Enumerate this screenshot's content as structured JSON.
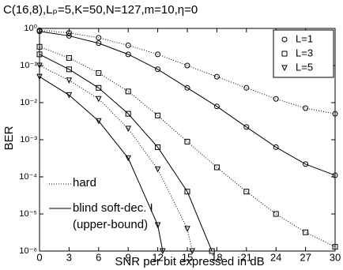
{
  "chart_data": {
    "type": "line",
    "title": "C(16,8),Lₚ=5,K=50,N=127,m=10,η=0",
    "xlabel": "SNR per bit expressed in dB",
    "ylabel": "BER",
    "xlim": [
      0,
      30
    ],
    "xticks": [
      0,
      3,
      6,
      9,
      12,
      15,
      18,
      21,
      24,
      27,
      30
    ],
    "ylim": [
      1e-06,
      1
    ],
    "yscale": "log",
    "yticks": [
      {
        "value": 1,
        "label": "10⁰"
      },
      {
        "value": 0.1,
        "label": "10⁻¹"
      },
      {
        "value": 0.01,
        "label": "10⁻²"
      },
      {
        "value": 0.001,
        "label": "10⁻³"
      },
      {
        "value": 0.0001,
        "label": "10⁻⁴"
      },
      {
        "value": 1e-05,
        "label": "10⁻⁵"
      },
      {
        "value": 1e-06,
        "label": "10⁻⁶"
      }
    ],
    "legend": [
      {
        "label": "L=1",
        "marker": "circle"
      },
      {
        "label": "L=3",
        "marker": "square"
      },
      {
        "label": "L=5",
        "marker": "triangle"
      }
    ],
    "legend_position": "upper right",
    "annotations": [
      "hard",
      "blind soft-dec. I",
      "(upper-bound)"
    ],
    "series": [
      {
        "marker": "circle",
        "dash": "dotted",
        "color": "#000000",
        "x": [
          0,
          3,
          6,
          9,
          12,
          15,
          18,
          21,
          24,
          27,
          30
        ],
        "values": [
          0.89,
          0.76,
          0.56,
          0.35,
          0.2,
          0.1,
          0.05,
          0.025,
          0.0126,
          0.0071,
          0.005
        ]
      },
      {
        "marker": "circle",
        "dash": "solid",
        "color": "#000000",
        "x": [
          0,
          3,
          6,
          9,
          12,
          15,
          18,
          21,
          24,
          27,
          30
        ],
        "values": [
          0.83,
          0.63,
          0.4,
          0.2,
          0.079,
          0.025,
          0.0079,
          0.0022,
          0.00063,
          0.00022,
          0.00011
        ]
      },
      {
        "marker": "square",
        "dash": "dotted",
        "color": "#000000",
        "x": [
          0,
          3,
          6,
          9,
          12,
          15,
          18,
          21,
          24,
          27,
          30
        ],
        "values": [
          0.32,
          0.16,
          0.063,
          0.02,
          0.0045,
          0.00089,
          0.00018,
          4e-05,
          1e-05,
          3.2e-06,
          1.3e-06
        ]
      },
      {
        "marker": "square",
        "dash": "solid",
        "color": "#000000",
        "x": [
          0,
          3,
          6,
          9,
          12,
          15,
          17.5
        ],
        "values": [
          0.2,
          0.079,
          0.025,
          0.005,
          0.00063,
          4e-05,
          1e-06
        ]
      },
      {
        "marker": "triangle",
        "dash": "dotted",
        "color": "#000000",
        "x": [
          0,
          3,
          6,
          9,
          12,
          15,
          15.5
        ],
        "values": [
          0.1,
          0.04,
          0.0126,
          0.002,
          0.00016,
          4e-06,
          1e-06
        ]
      },
      {
        "marker": "triangle",
        "dash": "solid",
        "color": "#000000",
        "x": [
          0,
          3,
          6,
          9,
          12,
          12.5
        ],
        "values": [
          0.05,
          0.016,
          0.0032,
          0.00032,
          5e-06,
          1e-06
        ]
      }
    ]
  }
}
